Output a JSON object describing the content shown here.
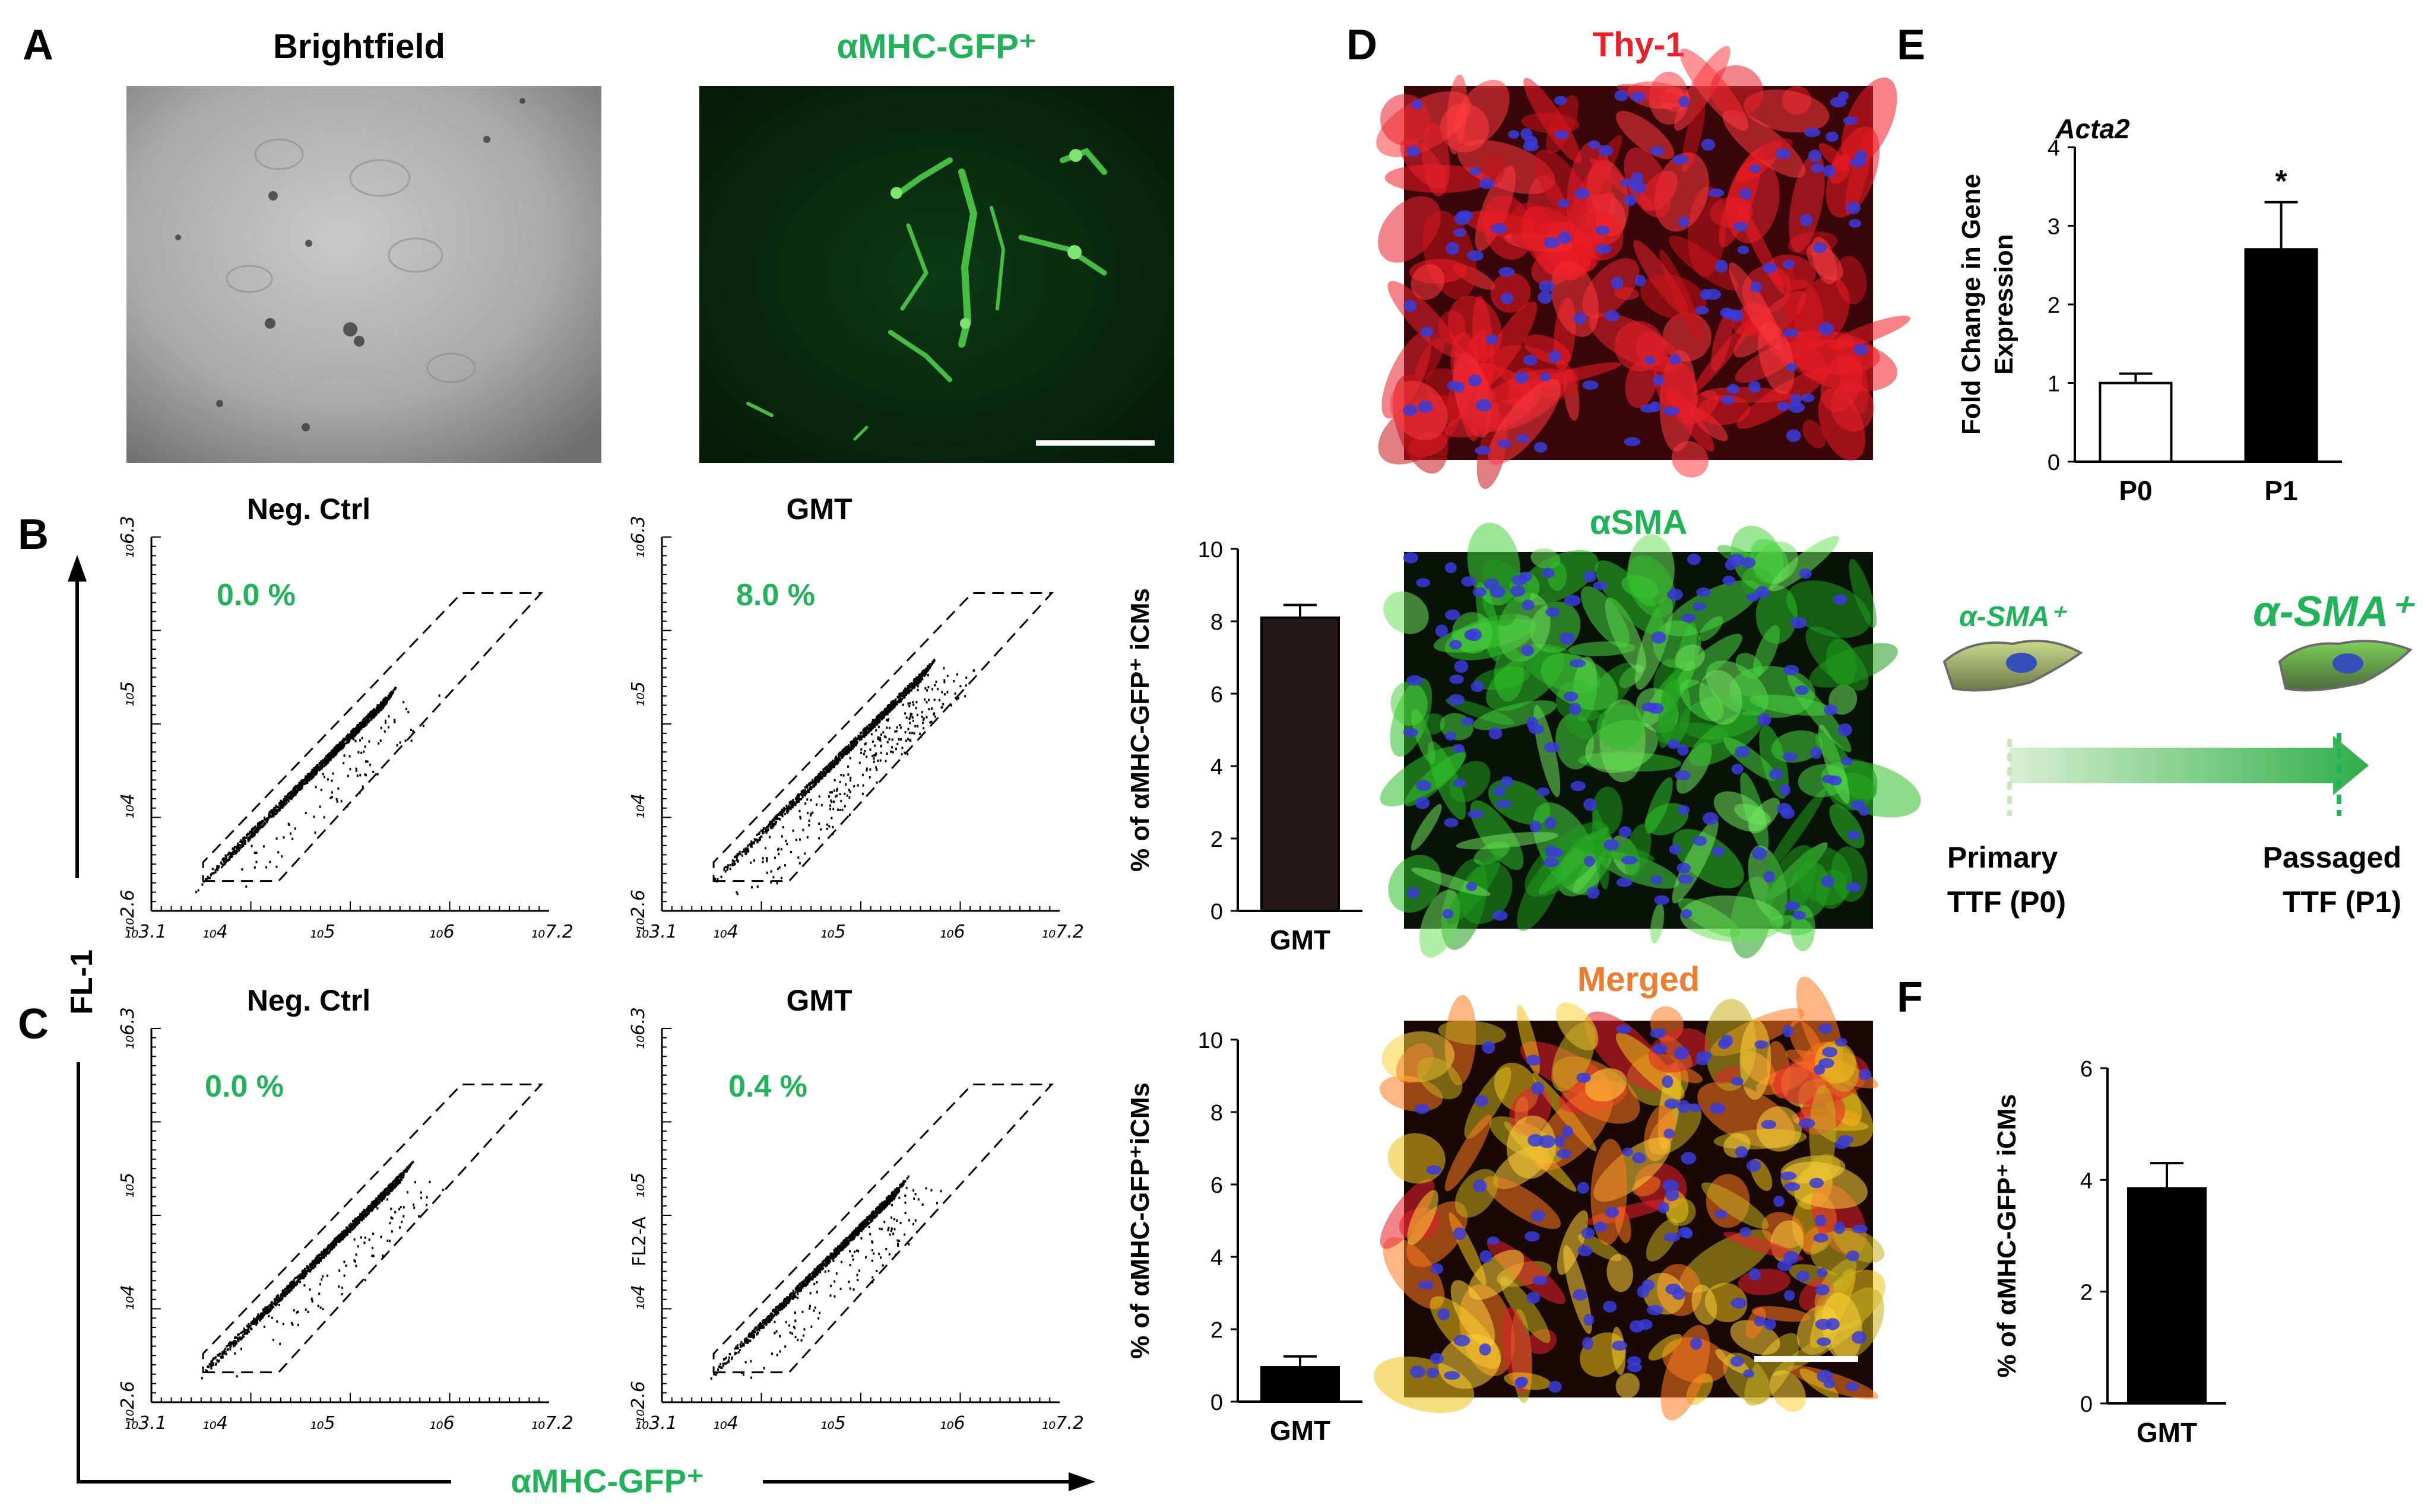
{
  "panels": {
    "A": "A",
    "B": "B",
    "C": "C",
    "D": "D",
    "E": "E",
    "F": "F"
  },
  "panel_a": {
    "brightfield_title": "Brightfield",
    "gfp_title": "αMHC-GFP⁺"
  },
  "flow": {
    "y_axis_label": "FL-1",
    "x_axis_label": "αMHC-GFP⁺",
    "x_ticks": [
      "10^3.1",
      "10^4",
      "10^5",
      "10^6",
      "10^7.2"
    ],
    "y_ticks": [
      "10^2.6",
      "10^4",
      "10^5",
      "10^6.3"
    ],
    "fl2_label": "FL2-A",
    "row_b": [
      {
        "title": "Neg. Ctrl",
        "percent": "0.0 %"
      },
      {
        "title": "GMT",
        "percent": "8.0 %"
      }
    ],
    "row_c": [
      {
        "title": "Neg. Ctrl",
        "percent": "0.0 %"
      },
      {
        "title": "GMT",
        "percent": "0.4 %"
      }
    ]
  },
  "panel_d": {
    "thy1_title": "Thy-1",
    "asma_title": "αSMA",
    "merged_title": "Merged"
  },
  "panel_e": {
    "diagram": {
      "left_marker": "α-SMA⁺",
      "right_marker": "α-SMA⁺",
      "left_caption_1": "Primary",
      "left_caption_2": "TTF (P0)",
      "right_caption_1": "Passaged",
      "right_caption_2": "TTF (P1)"
    }
  },
  "chart_data": [
    {
      "id": "B-bar",
      "type": "bar",
      "categories": [
        "GMT"
      ],
      "values": [
        8.1
      ],
      "errors": [
        0.35
      ],
      "ylabel": "% of αMHC-GFP⁺ iCMs",
      "ylim": [
        0,
        10
      ],
      "yticks": [
        0,
        2,
        4,
        6,
        8,
        10
      ],
      "bar_color": "#231815"
    },
    {
      "id": "C-bar",
      "type": "bar",
      "categories": [
        "GMT"
      ],
      "values": [
        0.95
      ],
      "errors": [
        0.3
      ],
      "ylabel": "% of αMHC-GFP⁺iCMs",
      "ylim": [
        0,
        10
      ],
      "yticks": [
        0,
        2,
        4,
        6,
        8,
        10
      ],
      "bar_color": "#000000"
    },
    {
      "id": "E-bar",
      "type": "bar",
      "title": "Acta2",
      "categories": [
        "P0",
        "P1"
      ],
      "values": [
        1.0,
        2.7
      ],
      "errors": [
        0.12,
        0.6
      ],
      "significance": [
        "",
        "*"
      ],
      "ylabel": "Fold Change in Gene Expression",
      "ylim": [
        0,
        4
      ],
      "yticks": [
        0,
        1,
        2,
        3,
        4
      ],
      "bar_fills": [
        "#ffffff",
        "#000000"
      ]
    },
    {
      "id": "F-bar",
      "type": "bar",
      "categories": [
        "GMT"
      ],
      "values": [
        3.85
      ],
      "errors": [
        0.45
      ],
      "ylabel": "% of αMHC-GFP⁺ iCMs",
      "ylim": [
        0,
        6
      ],
      "yticks": [
        0,
        2,
        4,
        6
      ],
      "bar_color": "#000000"
    }
  ],
  "colors": {
    "green": "#22b35a",
    "red": "#e8212b",
    "orange": "#ed7d31",
    "black": "#000000"
  }
}
